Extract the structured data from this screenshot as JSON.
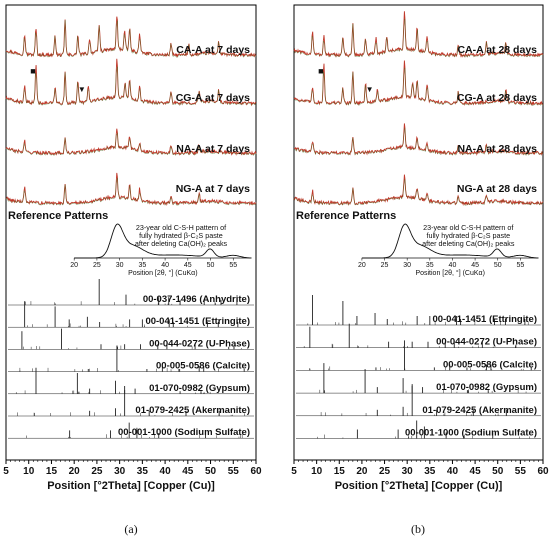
{
  "chart_data": [
    {
      "type": "line",
      "panel_label": "(a)",
      "xlabel": "Position [°2Theta] [Copper (Cu)]",
      "xlim": [
        5,
        60
      ],
      "x_ticks": [
        5,
        10,
        15,
        20,
        25,
        30,
        35,
        40,
        45,
        50,
        55,
        60
      ],
      "sample_series": [
        {
          "name": "CA-A at 7 days",
          "peaks": [
            [
              9.1,
              0.5
            ],
            [
              11.6,
              0.7
            ],
            [
              15.8,
              0.5
            ],
            [
              18.0,
              0.9
            ],
            [
              20.8,
              0.5
            ],
            [
              23.4,
              0.4
            ],
            [
              25.5,
              0.7
            ],
            [
              29.4,
              0.9
            ],
            [
              31.1,
              0.5
            ],
            [
              32.2,
              0.6
            ],
            [
              34.4,
              0.5
            ],
            [
              41.3,
              0.3
            ],
            [
              45.2,
              0.3
            ],
            [
              51.8,
              0.3
            ]
          ]
        },
        {
          "name": "CG-A at 7 days",
          "peaks": [
            [
              9.1,
              0.4
            ],
            [
              11.6,
              1.0
            ],
            [
              15.8,
              0.4
            ],
            [
              18.0,
              0.8
            ],
            [
              20.8,
              0.6
            ],
            [
              23.1,
              0.4
            ],
            [
              29.4,
              1.0
            ],
            [
              31.2,
              0.4
            ],
            [
              32.2,
              0.5
            ],
            [
              34.4,
              0.4
            ],
            [
              41.3,
              0.3
            ],
            [
              47.5,
              0.3
            ],
            [
              51.8,
              0.3
            ]
          ]
        },
        {
          "name": "NA-A at 7 days",
          "peaks": [
            [
              9.1,
              0.3
            ],
            [
              18.0,
              0.4
            ],
            [
              29.4,
              0.5
            ],
            [
              32.2,
              0.3
            ],
            [
              34.4,
              0.2
            ],
            [
              41.3,
              0.2
            ],
            [
              47.5,
              0.2
            ]
          ]
        },
        {
          "name": "NG-A at 7 days",
          "peaks": [
            [
              9.1,
              0.4
            ],
            [
              18.0,
              0.5
            ],
            [
              29.4,
              0.6
            ],
            [
              32.2,
              0.4
            ],
            [
              34.4,
              0.3
            ],
            [
              41.3,
              0.2
            ],
            [
              47.5,
              0.2
            ]
          ]
        }
      ],
      "markers": [
        {
          "symbol": "■",
          "x": 11.6
        },
        {
          "symbol": "▼",
          "x": 20.8
        }
      ],
      "section_heading": "Reference Patterns",
      "inset": {
        "note": [
          "23-year old C-S-H pattern of",
          "fully hydrated β-C₂S paste",
          "after deleting Ca(OH)₂ peaks"
        ],
        "xlabel": "Position [2θ, °] (CuKα)",
        "xlim": [
          20,
          59
        ],
        "x_ticks": [
          20,
          25,
          30,
          35,
          40,
          45,
          50,
          55
        ],
        "peaks": [
          [
            29.4,
            1.0
          ],
          [
            31.8,
            0.45
          ],
          [
            49.9,
            0.35
          ],
          [
            55.0,
            0.1
          ]
        ]
      },
      "references": [
        {
          "name": "00-037-1496 (Anhydrite)",
          "peaks": [
            [
              25.5,
              1.0
            ],
            [
              31.4,
              0.4
            ],
            [
              38.6,
              0.3
            ],
            [
              40.8,
              0.3
            ],
            [
              43.3,
              0.2
            ],
            [
              48.6,
              0.2
            ],
            [
              52.3,
              0.2
            ],
            [
              55.8,
              0.2
            ]
          ]
        },
        {
          "name": "00-041-1451 (Ettringite)",
          "peaks": [
            [
              9.1,
              1.0
            ],
            [
              15.8,
              0.8
            ],
            [
              18.9,
              0.3
            ],
            [
              22.9,
              0.4
            ],
            [
              25.6,
              0.2
            ],
            [
              32.2,
              0.3
            ],
            [
              35.0,
              0.3
            ],
            [
              40.9,
              0.3
            ],
            [
              41.8,
              0.2
            ],
            [
              49.3,
              0.2
            ],
            [
              51.7,
              0.2
            ],
            [
              56.0,
              0.2
            ]
          ]
        },
        {
          "name": "00-044-0272 (U-Phase)",
          "peaks": [
            [
              8.5,
              0.7
            ],
            [
              17.2,
              0.8
            ],
            [
              25.9,
              0.2
            ],
            [
              31.1,
              0.2
            ],
            [
              34.6,
              0.2
            ],
            [
              38.4,
              0.2
            ],
            [
              40.4,
              0.2
            ],
            [
              46.6,
              0.2
            ],
            [
              54.0,
              0.1
            ]
          ]
        },
        {
          "name": "00-005-0586 (Calcite)",
          "peaks": [
            [
              23.1,
              0.1
            ],
            [
              29.4,
              1.0
            ],
            [
              36.0,
              0.1
            ],
            [
              39.4,
              0.2
            ],
            [
              43.2,
              0.1
            ],
            [
              47.5,
              0.2
            ],
            [
              48.5,
              0.2
            ],
            [
              57.4,
              0.1
            ]
          ]
        },
        {
          "name": "01-070-0982 (Gypsum)",
          "peaks": [
            [
              11.6,
              1.0
            ],
            [
              20.7,
              0.8
            ],
            [
              23.4,
              0.2
            ],
            [
              29.1,
              0.5
            ],
            [
              31.1,
              0.3
            ],
            [
              33.4,
              0.2
            ],
            [
              43.3,
              0.1
            ],
            [
              47.9,
              0.1
            ]
          ]
        },
        {
          "name": "01-079-2425 (Akermanite)",
          "peaks": [
            [
              23.4,
              0.2
            ],
            [
              29.1,
              0.3
            ],
            [
              31.1,
              1.0
            ],
            [
              36.5,
              0.2
            ],
            [
              44.6,
              0.2
            ],
            [
              51.9,
              0.2
            ]
          ]
        },
        {
          "name": "00-001-1000 (Sodium Sulfate)",
          "peaks": [
            [
              19.0,
              0.3
            ],
            [
              28.0,
              0.3
            ],
            [
              32.1,
              0.6
            ],
            [
              33.8,
              0.4
            ],
            [
              38.6,
              0.2
            ],
            [
              48.9,
              0.2
            ]
          ]
        }
      ]
    },
    {
      "type": "line",
      "panel_label": "(b)",
      "xlabel": "Position [°2Theta] [Copper (Cu)]",
      "xlim": [
        5,
        60
      ],
      "x_ticks": [
        5,
        10,
        15,
        20,
        25,
        30,
        35,
        40,
        45,
        50,
        55,
        60
      ],
      "sample_series": [
        {
          "name": "CA-A at 28 days",
          "peaks": [
            [
              9.1,
              0.6
            ],
            [
              11.6,
              0.5
            ],
            [
              15.8,
              0.5
            ],
            [
              18.0,
              0.8
            ],
            [
              20.8,
              0.4
            ],
            [
              23.1,
              0.4
            ],
            [
              25.5,
              0.4
            ],
            [
              29.4,
              1.0
            ],
            [
              32.2,
              0.6
            ],
            [
              34.4,
              0.4
            ],
            [
              41.3,
              0.3
            ],
            [
              47.5,
              0.3
            ],
            [
              51.8,
              0.3
            ]
          ]
        },
        {
          "name": "CG-A at 28 days",
          "peaks": [
            [
              9.1,
              0.4
            ],
            [
              11.6,
              1.0
            ],
            [
              15.8,
              0.4
            ],
            [
              18.0,
              0.8
            ],
            [
              20.8,
              0.5
            ],
            [
              23.4,
              0.3
            ],
            [
              29.4,
              1.0
            ],
            [
              31.2,
              0.4
            ],
            [
              32.2,
              0.5
            ],
            [
              34.4,
              0.4
            ],
            [
              41.3,
              0.3
            ],
            [
              51.8,
              0.3
            ]
          ]
        },
        {
          "name": "NA-A at 28 days",
          "peaks": [
            [
              9.1,
              0.3
            ],
            [
              18.0,
              0.4
            ],
            [
              29.4,
              0.6
            ],
            [
              32.2,
              0.3
            ],
            [
              34.4,
              0.2
            ],
            [
              41.3,
              0.2
            ],
            [
              47.5,
              0.2
            ]
          ]
        },
        {
          "name": "NG-A at 28 days",
          "peaks": [
            [
              9.1,
              0.3
            ],
            [
              18.0,
              0.4
            ],
            [
              29.4,
              0.6
            ],
            [
              32.2,
              0.3
            ],
            [
              34.4,
              0.2
            ],
            [
              41.3,
              0.2
            ],
            [
              47.5,
              0.2
            ]
          ]
        }
      ],
      "markers": [
        {
          "symbol": "■",
          "x": 11.6
        },
        {
          "symbol": "▼",
          "x": 20.8
        }
      ],
      "section_heading": "Reference Patterns",
      "inset": {
        "note": [
          "23-year old C-S-H pattern of",
          "fully hydrated β-C₂S paste",
          "after deleting Ca(OH)₂ peaks"
        ],
        "xlabel": "Position [2θ, °] (CuKα)",
        "xlim": [
          20,
          59
        ],
        "x_ticks": [
          20,
          25,
          30,
          35,
          40,
          45,
          50,
          55
        ],
        "peaks": [
          [
            29.4,
            1.0
          ],
          [
            31.8,
            0.45
          ],
          [
            49.9,
            0.35
          ],
          [
            55.0,
            0.1
          ]
        ]
      },
      "references": [
        {
          "name": "00-041-1451 (Ettringite)",
          "peaks": [
            [
              9.1,
              1.0
            ],
            [
              15.8,
              0.8
            ],
            [
              18.9,
              0.3
            ],
            [
              22.9,
              0.4
            ],
            [
              25.6,
              0.2
            ],
            [
              32.2,
              0.3
            ],
            [
              35.0,
              0.3
            ],
            [
              40.9,
              0.3
            ],
            [
              41.8,
              0.2
            ],
            [
              49.3,
              0.2
            ],
            [
              51.7,
              0.2
            ],
            [
              56.0,
              0.2
            ]
          ]
        },
        {
          "name": "00-044-0272 (U-Phase)",
          "peaks": [
            [
              8.5,
              0.7
            ],
            [
              17.2,
              0.8
            ],
            [
              25.9,
              0.2
            ],
            [
              31.1,
              0.2
            ],
            [
              34.6,
              0.2
            ],
            [
              38.4,
              0.2
            ],
            [
              40.4,
              0.2
            ],
            [
              46.6,
              0.2
            ],
            [
              54.0,
              0.1
            ]
          ]
        },
        {
          "name": "00-005-0586 (Calcite)",
          "peaks": [
            [
              23.1,
              0.1
            ],
            [
              29.4,
              1.0
            ],
            [
              36.0,
              0.1
            ],
            [
              39.4,
              0.2
            ],
            [
              43.2,
              0.1
            ],
            [
              47.5,
              0.2
            ],
            [
              48.5,
              0.2
            ],
            [
              57.4,
              0.1
            ]
          ]
        },
        {
          "name": "01-070-0982 (Gypsum)",
          "peaks": [
            [
              11.6,
              1.0
            ],
            [
              20.7,
              0.8
            ],
            [
              23.4,
              0.2
            ],
            [
              29.1,
              0.5
            ],
            [
              31.1,
              0.3
            ],
            [
              33.4,
              0.2
            ],
            [
              43.3,
              0.1
            ],
            [
              47.9,
              0.1
            ]
          ]
        },
        {
          "name": "01-079-2425 (Akermanite)",
          "peaks": [
            [
              23.4,
              0.2
            ],
            [
              29.1,
              0.3
            ],
            [
              31.1,
              1.0
            ],
            [
              36.5,
              0.2
            ],
            [
              44.6,
              0.2
            ],
            [
              51.9,
              0.2
            ]
          ]
        },
        {
          "name": "00-001-1000 (Sodium Sulfate)",
          "peaks": [
            [
              19.0,
              0.3
            ],
            [
              28.0,
              0.3
            ],
            [
              32.1,
              0.6
            ],
            [
              33.8,
              0.4
            ],
            [
              38.6,
              0.2
            ],
            [
              48.9,
              0.2
            ]
          ]
        }
      ]
    }
  ],
  "colors": {
    "pattern_noise": "#c0392b",
    "pattern_fit": "#1f7a1f",
    "reference_line": "#222222",
    "frame": "#000000"
  }
}
